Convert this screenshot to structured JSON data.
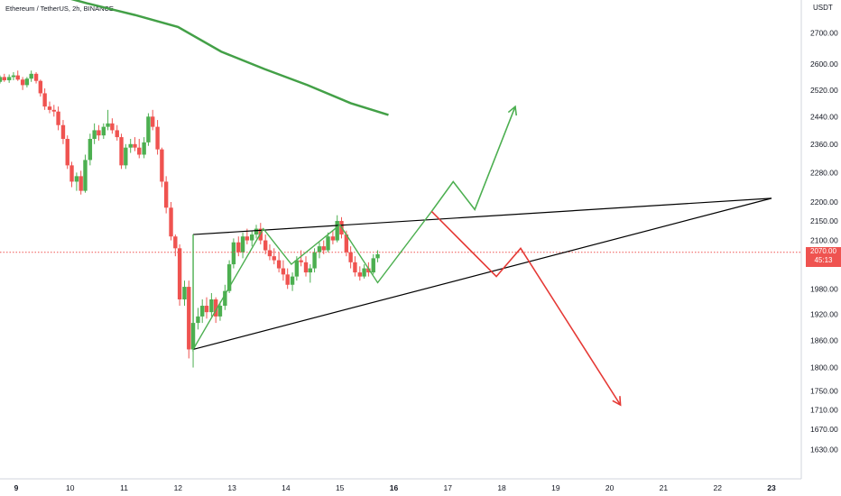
{
  "header": {
    "symbol_name": "Ethereum / TetherUS",
    "separator1": ", ",
    "interval": "2h",
    "separator2": ", ",
    "exchange": "BINANCE",
    "currency": "USDT"
  },
  "price_tag": {
    "price": "2070.00",
    "countdown": "45:13",
    "color": "#ef5350"
  },
  "colors": {
    "up": "#4caf50",
    "down": "#ef5350",
    "ma_line": "#43a047",
    "trendline": "#000000",
    "bull_path": "#4caf50",
    "bear_path": "#e53935",
    "current_price_line": "#ef5350"
  },
  "chart_data": {
    "type": "candlestick",
    "title": "",
    "y_axis": {
      "side": "right",
      "scale": "log",
      "ylim": [
        1600,
        2900
      ],
      "tick_labels": [
        "2700.00",
        "2600.00",
        "2520.00",
        "2440.00",
        "2360.00",
        "2280.00",
        "2200.00",
        "2150.00",
        "2100.00",
        "1980.00",
        "1920.00",
        "1860.00",
        "1800.00",
        "1750.00",
        "1710.00",
        "1670.00",
        "1630.00"
      ],
      "tick_values": [
        2700,
        2600,
        2520,
        2440,
        2360,
        2280,
        2200,
        2150,
        2100,
        1980,
        1920,
        1860,
        1800,
        1750,
        1710,
        1670,
        1630
      ]
    },
    "x_axis": {
      "tick_labels": [
        "9",
        "10",
        "11",
        "12",
        "13",
        "14",
        "15",
        "16",
        "17",
        "18",
        "19",
        "20",
        "21",
        "22",
        "23"
      ],
      "tick_days": [
        9,
        10,
        11,
        12,
        13,
        14,
        15,
        16,
        17,
        18,
        19,
        20,
        21,
        22,
        23
      ],
      "bold_labels": [
        "9",
        "16",
        "23"
      ],
      "xlim_days": [
        8.7,
        23.0
      ]
    },
    "grid": false,
    "current_price": 2070,
    "candles": [
      [
        8.7,
        2545,
        2565,
        2540,
        2560
      ],
      [
        8.78,
        2560,
        2570,
        2545,
        2550
      ],
      [
        8.87,
        2550,
        2568,
        2542,
        2560
      ],
      [
        8.95,
        2560,
        2575,
        2550,
        2565
      ],
      [
        9.03,
        2565,
        2580,
        2548,
        2552
      ],
      [
        9.12,
        2552,
        2560,
        2520,
        2535
      ],
      [
        9.2,
        2535,
        2560,
        2528,
        2555
      ],
      [
        9.28,
        2555,
        2580,
        2545,
        2570
      ],
      [
        9.37,
        2570,
        2575,
        2540,
        2548
      ],
      [
        9.45,
        2548,
        2552,
        2500,
        2510
      ],
      [
        9.53,
        2510,
        2525,
        2460,
        2470
      ],
      [
        9.62,
        2470,
        2485,
        2450,
        2460
      ],
      [
        9.7,
        2460,
        2475,
        2440,
        2455
      ],
      [
        9.78,
        2455,
        2470,
        2400,
        2415
      ],
      [
        9.87,
        2415,
        2430,
        2360,
        2375
      ],
      [
        9.95,
        2375,
        2385,
        2290,
        2300
      ],
      [
        10.03,
        2300,
        2310,
        2240,
        2255
      ],
      [
        10.12,
        2255,
        2280,
        2230,
        2270
      ],
      [
        10.2,
        2270,
        2285,
        2220,
        2230
      ],
      [
        10.28,
        2230,
        2330,
        2225,
        2315
      ],
      [
        10.37,
        2315,
        2390,
        2300,
        2375
      ],
      [
        10.45,
        2375,
        2420,
        2360,
        2400
      ],
      [
        10.53,
        2400,
        2415,
        2370,
        2385
      ],
      [
        10.62,
        2385,
        2420,
        2375,
        2410
      ],
      [
        10.7,
        2410,
        2460,
        2400,
        2420
      ],
      [
        10.78,
        2420,
        2435,
        2390,
        2400
      ],
      [
        10.87,
        2400,
        2415,
        2370,
        2380
      ],
      [
        10.95,
        2380,
        2390,
        2290,
        2300
      ],
      [
        11.03,
        2300,
        2360,
        2290,
        2350
      ],
      [
        11.12,
        2350,
        2375,
        2335,
        2360
      ],
      [
        11.2,
        2360,
        2380,
        2340,
        2350
      ],
      [
        11.28,
        2350,
        2375,
        2320,
        2330
      ],
      [
        11.37,
        2330,
        2380,
        2320,
        2365
      ],
      [
        11.45,
        2365,
        2450,
        2355,
        2440
      ],
      [
        11.53,
        2440,
        2460,
        2400,
        2410
      ],
      [
        11.62,
        2410,
        2430,
        2330,
        2345
      ],
      [
        11.7,
        2345,
        2350,
        2240,
        2255
      ],
      [
        11.78,
        2255,
        2270,
        2170,
        2185
      ],
      [
        11.87,
        2185,
        2200,
        2100,
        2110
      ],
      [
        11.95,
        2110,
        2115,
        2060,
        2080
      ],
      [
        12.03,
        2080,
        2090,
        1940,
        1955
      ],
      [
        12.12,
        1955,
        2000,
        1940,
        1985
      ],
      [
        12.2,
        1985,
        2000,
        1820,
        1840
      ],
      [
        12.28,
        1840,
        1920,
        1800,
        1900
      ],
      [
        12.37,
        1900,
        1935,
        1885,
        1915
      ],
      [
        12.45,
        1915,
        1955,
        1900,
        1940
      ],
      [
        12.53,
        1940,
        1960,
        1910,
        1925
      ],
      [
        12.62,
        1925,
        1970,
        1915,
        1955
      ],
      [
        12.7,
        1955,
        1960,
        1900,
        1915
      ],
      [
        12.78,
        1915,
        1950,
        1905,
        1940
      ],
      [
        12.87,
        1940,
        1990,
        1930,
        1975
      ],
      [
        12.95,
        1975,
        2050,
        1970,
        2040
      ],
      [
        13.03,
        2040,
        2105,
        2030,
        2095
      ],
      [
        13.12,
        2095,
        2110,
        2060,
        2070
      ],
      [
        13.2,
        2070,
        2120,
        2055,
        2110
      ],
      [
        13.28,
        2110,
        2130,
        2090,
        2100
      ],
      [
        13.37,
        2100,
        2125,
        2085,
        2115
      ],
      [
        13.45,
        2115,
        2140,
        2105,
        2130
      ],
      [
        13.53,
        2130,
        2145,
        2090,
        2100
      ],
      [
        13.62,
        2100,
        2115,
        2065,
        2075
      ],
      [
        13.7,
        2075,
        2090,
        2050,
        2060
      ],
      [
        13.78,
        2060,
        2080,
        2040,
        2050
      ],
      [
        13.87,
        2050,
        2070,
        2020,
        2030
      ],
      [
        13.95,
        2030,
        2050,
        2000,
        2015
      ],
      [
        14.03,
        2015,
        2030,
        1980,
        1990
      ],
      [
        14.12,
        1990,
        2020,
        1975,
        2010
      ],
      [
        14.2,
        2010,
        2060,
        2000,
        2050
      ],
      [
        14.28,
        2050,
        2075,
        2035,
        2045
      ],
      [
        14.37,
        2045,
        2060,
        2010,
        2020
      ],
      [
        14.45,
        2020,
        2040,
        1995,
        2030
      ],
      [
        14.53,
        2030,
        2080,
        2020,
        2070
      ],
      [
        14.62,
        2070,
        2095,
        2055,
        2085
      ],
      [
        14.7,
        2085,
        2100,
        2065,
        2075
      ],
      [
        14.78,
        2075,
        2120,
        2070,
        2110
      ],
      [
        14.87,
        2110,
        2125,
        2090,
        2100
      ],
      [
        14.95,
        2100,
        2165,
        2095,
        2150
      ],
      [
        15.03,
        2150,
        2160,
        2105,
        2115
      ],
      [
        15.12,
        2115,
        2125,
        2060,
        2070
      ],
      [
        15.2,
        2070,
        2085,
        2030,
        2045
      ],
      [
        15.28,
        2045,
        2060,
        2010,
        2020
      ],
      [
        15.37,
        2020,
        2035,
        2000,
        2010
      ],
      [
        15.45,
        2010,
        2040,
        2005,
        2030
      ],
      [
        15.53,
        2030,
        2045,
        2010,
        2020
      ],
      [
        15.62,
        2020,
        2065,
        2015,
        2055
      ],
      [
        15.7,
        2055,
        2075,
        2045,
        2065
      ]
    ],
    "moving_average": {
      "points": [
        [
          8.7,
          2900
        ],
        [
          9.5,
          2840
        ],
        [
          10.3,
          2800
        ],
        [
          11.2,
          2760
        ],
        [
          12.0,
          2720
        ],
        [
          12.8,
          2640
        ],
        [
          13.6,
          2585
        ],
        [
          14.4,
          2535
        ],
        [
          15.2,
          2480
        ],
        [
          15.9,
          2445
        ]
      ]
    },
    "trendlines": [
      {
        "name": "upper-trendline",
        "from": [
          12.28,
          2115
        ],
        "to": [
          23.0,
          2210
        ]
      },
      {
        "name": "lower-trendline",
        "from": [
          12.28,
          1840
        ],
        "to": [
          23.0,
          2210
        ]
      }
    ],
    "zigzag": {
      "points": [
        [
          12.28,
          2115
        ],
        [
          12.28,
          1840
        ],
        [
          13.58,
          2130
        ],
        [
          14.1,
          2040
        ],
        [
          15.0,
          2140
        ],
        [
          15.7,
          1995
        ],
        [
          16.7,
          2175
        ]
      ]
    },
    "bull_projection": {
      "points": [
        [
          16.7,
          2175
        ],
        [
          17.1,
          2255
        ],
        [
          17.5,
          2180
        ],
        [
          18.25,
          2470
        ]
      ]
    },
    "bear_projection": {
      "points": [
        [
          16.7,
          2175
        ],
        [
          17.9,
          2010
        ],
        [
          18.35,
          2080
        ],
        [
          20.2,
          1720
        ]
      ]
    }
  }
}
